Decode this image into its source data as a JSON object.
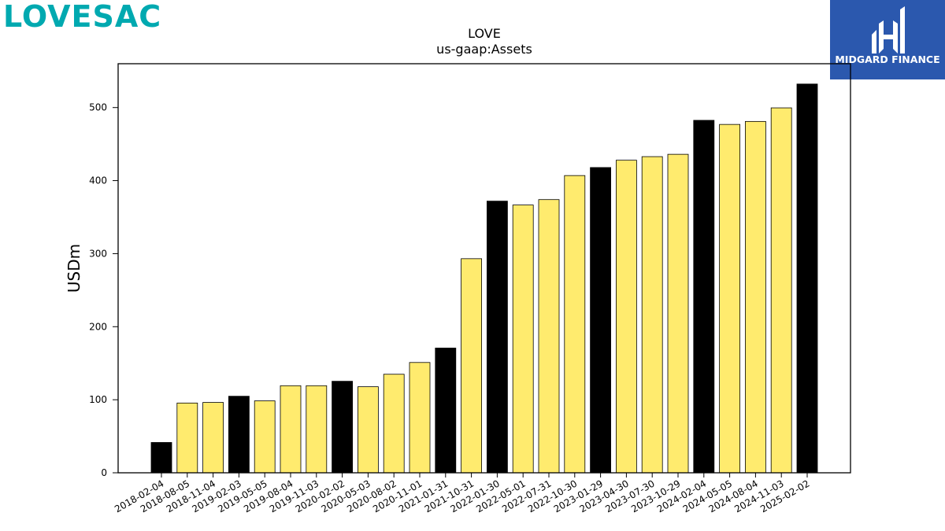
{
  "branding": {
    "company_logo_text": "LOVESAC",
    "company_logo_color": "#00a9b0",
    "publisher_logo_text": "MIDGARD FINANCE",
    "publisher_logo_bg": "#2b58ae"
  },
  "chart_data": {
    "type": "bar",
    "title": "LOVE",
    "subtitle": "us-gaap:Assets",
    "xlabel": "",
    "ylabel": "USDm",
    "ylim": [
      0,
      560
    ],
    "yticks": [
      0,
      100,
      200,
      300,
      400,
      500
    ],
    "grid": false,
    "colors": {
      "fiscal_year_end": "#000000",
      "quarter": "#ffeb6e",
      "edge": "#000000"
    },
    "categories": [
      "2018-02-04",
      "2018-08-05",
      "2018-11-04",
      "2019-02-03",
      "2019-05-05",
      "2019-08-04",
      "2019-11-03",
      "2020-02-02",
      "2020-05-03",
      "2020-08-02",
      "2020-11-01",
      "2021-01-31",
      "2021-10-31",
      "2022-01-30",
      "2022-05-01",
      "2022-07-31",
      "2022-10-30",
      "2023-01-29",
      "2023-04-30",
      "2023-07-30",
      "2023-10-29",
      "2024-02-04",
      "2024-05-05",
      "2024-08-04",
      "2024-11-03",
      "2025-02-02"
    ],
    "values": [
      41.5,
      95.5,
      96.3,
      104.8,
      98.5,
      119.2,
      119.2,
      125.3,
      117.8,
      134.9,
      151.0,
      170.8,
      293.1,
      371.9,
      366.6,
      374.0,
      406.9,
      417.9,
      427.9,
      432.8,
      436.0,
      482.5,
      476.9,
      481.0,
      499.6,
      532.2
    ],
    "bar_type": [
      "fiscal_year_end",
      "quarter",
      "quarter",
      "fiscal_year_end",
      "quarter",
      "quarter",
      "quarter",
      "fiscal_year_end",
      "quarter",
      "quarter",
      "quarter",
      "fiscal_year_end",
      "quarter",
      "fiscal_year_end",
      "quarter",
      "quarter",
      "quarter",
      "fiscal_year_end",
      "quarter",
      "quarter",
      "quarter",
      "fiscal_year_end",
      "quarter",
      "quarter",
      "quarter",
      "fiscal_year_end"
    ]
  }
}
